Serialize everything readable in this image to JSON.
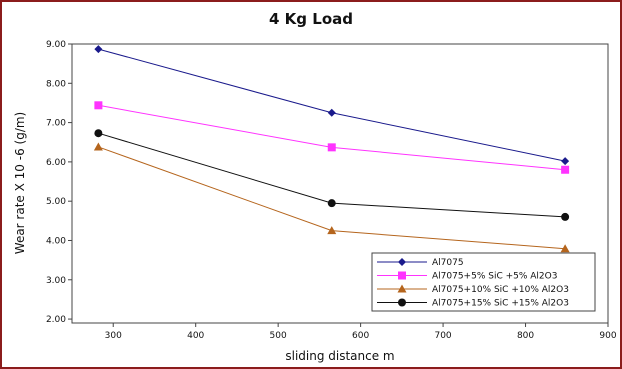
{
  "chart_data": {
    "type": "line",
    "title": "4 Kg Load",
    "xlabel": "sliding distance m",
    "ylabel": "Wear rate X 10 -6  (g/m)",
    "xlim": [
      250,
      900
    ],
    "ylim": [
      1.9,
      9.0
    ],
    "xticks": [
      300,
      400,
      500,
      600,
      700,
      800,
      900
    ],
    "xtick_labels": [
      "300",
      "400",
      "500",
      "600",
      "700",
      "800",
      "900"
    ],
    "yticks": [
      2,
      3,
      4,
      5,
      6,
      7,
      8,
      9
    ],
    "ytick_labels": [
      "2.00",
      "3.00",
      "4.00",
      "5.00",
      "6.00",
      "7.00",
      "8.00",
      "9.00"
    ],
    "x": [
      282,
      565,
      848
    ],
    "grid": false,
    "legend_position": "bottom-right",
    "series": [
      {
        "name": "Al7075",
        "values": [
          8.87,
          7.25,
          6.02
        ],
        "color": "#1a1a8c",
        "marker": "diamond"
      },
      {
        "name": "Al7075+5% SiC +5% Al2O3",
        "values": [
          7.44,
          6.37,
          5.8
        ],
        "color": "#ff33ff",
        "marker": "square"
      },
      {
        "name": "Al7075+10% SiC +10% Al2O3",
        "values": [
          6.38,
          4.25,
          3.79
        ],
        "color": "#b5651d",
        "marker": "triangle"
      },
      {
        "name": "Al7075+15% SiC +15% Al2O3",
        "values": [
          6.73,
          4.95,
          4.6
        ],
        "color": "#111111",
        "marker": "circle"
      }
    ]
  }
}
